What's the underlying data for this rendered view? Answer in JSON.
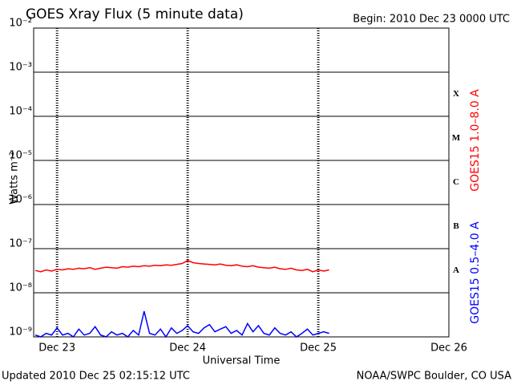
{
  "chart_data": {
    "type": "line",
    "title": "GOES Xray Flux (5 minute data)",
    "subtitle": "Begin:  2010 Dec 23 0000 UTC",
    "x_label": "Universal Time",
    "y_label": "Watts m⁻²",
    "log_y": true,
    "grid": true,
    "footer_left": "Updated 2010 Dec 25 02:15:12 UTC",
    "footer_right": "NOAA/SWPC Boulder, CO USA",
    "xlim": [
      -4.3,
      72
    ],
    "xticks": [
      {
        "value": 0,
        "label": "Dec 23"
      },
      {
        "value": 24,
        "label": "Dec 24"
      },
      {
        "value": 48,
        "label": "Dec 25"
      },
      {
        "value": 72,
        "label": "Dec 26"
      }
    ],
    "ylim": [
      1e-09,
      0.01
    ],
    "yticks": [
      {
        "value": 1e-09,
        "label": "10⁻⁹"
      },
      {
        "value": 1e-08,
        "label": "10⁻⁸"
      },
      {
        "value": 1e-07,
        "label": "10⁻⁷"
      },
      {
        "value": 1e-06,
        "label": "10⁻⁶"
      },
      {
        "value": 1e-05,
        "label": "10⁻⁵"
      },
      {
        "value": 0.0001,
        "label": "10⁻⁴"
      },
      {
        "value": 0.001,
        "label": "10⁻³"
      },
      {
        "value": 0.01,
        "label": "10⁻²"
      }
    ],
    "flare_classes": [
      {
        "label": "A",
        "value": 1e-08
      },
      {
        "label": "B",
        "value": 1e-07
      },
      {
        "label": "C",
        "value": 1e-06
      },
      {
        "label": "M",
        "value": 1e-05
      },
      {
        "label": "X",
        "value": 0.0001
      }
    ],
    "x": [
      -4,
      -3,
      -2,
      -1,
      0,
      1,
      2,
      3,
      4,
      5,
      6,
      7,
      8,
      9,
      10,
      11,
      12,
      13,
      14,
      15,
      16,
      17,
      18,
      19,
      20,
      21,
      22,
      23,
      24,
      25,
      26,
      27,
      28,
      29,
      30,
      31,
      32,
      33,
      34,
      35,
      36,
      37,
      38,
      39,
      40,
      41,
      42,
      43,
      44,
      45,
      46,
      47,
      48,
      49,
      50
    ],
    "series": [
      {
        "name": "GOES15 1.0–8.0 A",
        "color": "#ff0000",
        "values": [
          3.2e-08,
          3e-08,
          3.3e-08,
          3.1e-08,
          3.4e-08,
          3.3e-08,
          3.5e-08,
          3.4e-08,
          3.6e-08,
          3.5e-08,
          3.7e-08,
          3.4e-08,
          3.6e-08,
          3.8e-08,
          3.7e-08,
          3.6e-08,
          3.9e-08,
          3.8e-08,
          4e-08,
          3.9e-08,
          4.1e-08,
          4e-08,
          4.2e-08,
          4.1e-08,
          4.3e-08,
          4.2e-08,
          4.4e-08,
          4.6e-08,
          5.4e-08,
          4.8e-08,
          4.6e-08,
          4.5e-08,
          4.4e-08,
          4.3e-08,
          4.5e-08,
          4.2e-08,
          4.1e-08,
          4.3e-08,
          4e-08,
          3.9e-08,
          4.1e-08,
          3.8e-08,
          3.7e-08,
          3.6e-08,
          3.8e-08,
          3.5e-08,
          3.4e-08,
          3.6e-08,
          3.3e-08,
          3.2e-08,
          3.4e-08,
          3e-08,
          3.3e-08,
          3.1e-08,
          3.3e-08
        ]
      },
      {
        "name": "GOES15 0.5–4.0 A",
        "color": "#0000ff",
        "values": [
          1.1e-09,
          1e-09,
          1.2e-09,
          1.1e-09,
          1.6e-09,
          1.1e-09,
          1.2e-09,
          1e-09,
          1.5e-09,
          1.1e-09,
          1.2e-09,
          1.7e-09,
          1.1e-09,
          1e-09,
          1.3e-09,
          1.1e-09,
          1.2e-09,
          1e-09,
          1.4e-09,
          1.1e-09,
          3.8e-09,
          1.2e-09,
          1.1e-09,
          1.5e-09,
          1e-09,
          1.6e-09,
          1.2e-09,
          1.4e-09,
          1.8e-09,
          1.3e-09,
          1.2e-09,
          1.6e-09,
          1.9e-09,
          1.3e-09,
          1.5e-09,
          1.7e-09,
          1.2e-09,
          1.4e-09,
          1.1e-09,
          2e-09,
          1.3e-09,
          1.8e-09,
          1.2e-09,
          1.1e-09,
          1.6e-09,
          1.2e-09,
          1.1e-09,
          1.3e-09,
          1e-09,
          1.2e-09,
          1.5e-09,
          1.1e-09,
          1.2e-09,
          1.3e-09,
          1.2e-09
        ]
      }
    ]
  }
}
